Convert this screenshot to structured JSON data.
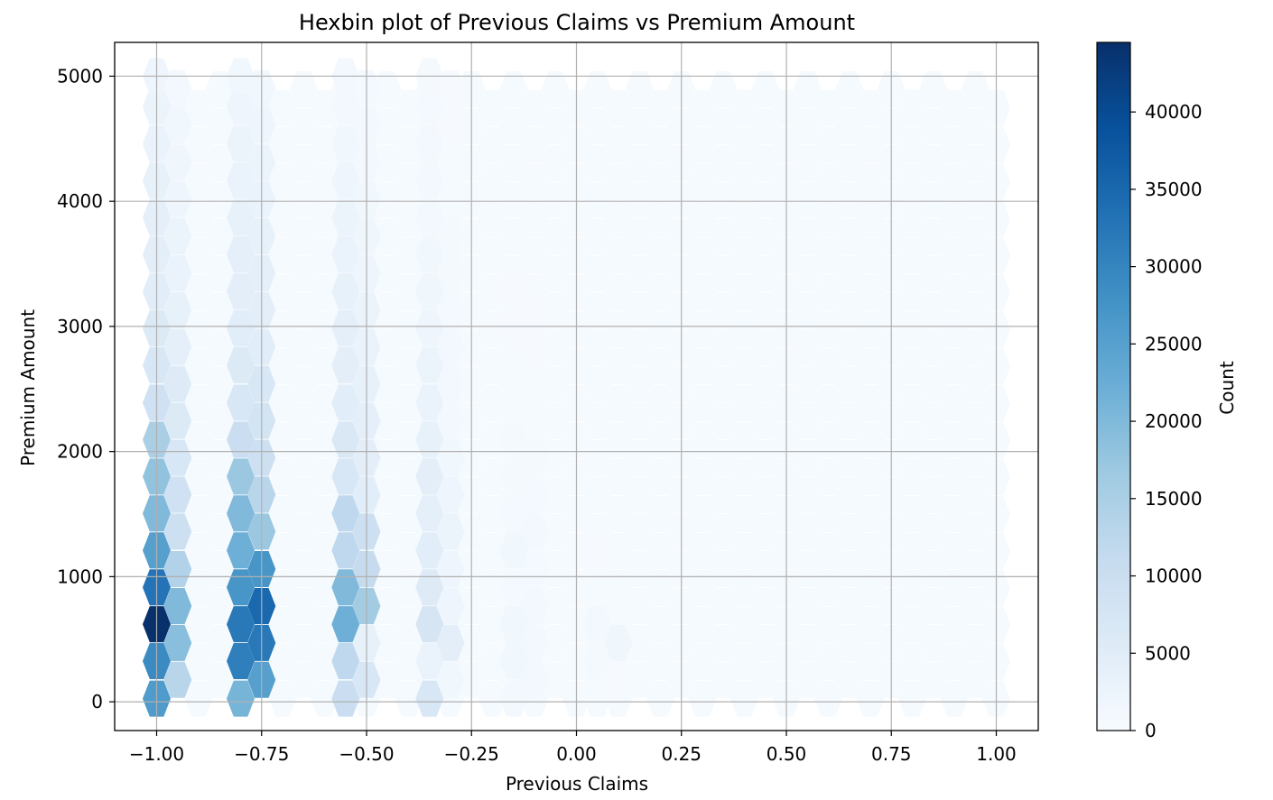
{
  "chart_data": {
    "type": "hexbin",
    "title": "Hexbin plot of Previous Claims vs Premium Amount",
    "xlabel": "Previous Claims",
    "ylabel": "Premium Amount",
    "xlim": [
      -1.1,
      1.1
    ],
    "ylim": [
      -230,
      5270
    ],
    "xticks": [
      -1.0,
      -0.75,
      -0.5,
      -0.25,
      0.0,
      0.25,
      0.5,
      0.75,
      1.0
    ],
    "xtick_labels": [
      "−1.00",
      "−0.75",
      "−0.50",
      "−0.25",
      "0.00",
      "0.25",
      "0.50",
      "0.75",
      "1.00"
    ],
    "yticks": [
      0,
      1000,
      2000,
      3000,
      4000,
      5000
    ],
    "ytick_labels": [
      "0",
      "1000",
      "2000",
      "3000",
      "4000",
      "5000"
    ],
    "grid": true,
    "colormap": "Blues",
    "colorbar": {
      "label": "Count",
      "min": 0,
      "max": 44500,
      "ticks": [
        0,
        5000,
        10000,
        15000,
        20000,
        25000,
        30000,
        35000,
        40000
      ],
      "tick_labels": [
        "0",
        "5000",
        "10000",
        "15000",
        "20000",
        "25000",
        "30000",
        "35000",
        "40000"
      ]
    },
    "x_columns": [
      -1.0,
      -0.95,
      -0.8,
      -0.75,
      -0.55,
      -0.5,
      -0.35,
      -0.3,
      -0.15,
      -0.1,
      0.05,
      0.1
    ],
    "y_centers": [
      [
        25,
        325,
        620,
        915,
        1210,
        1505,
        1800,
        2095,
        2390,
        2690,
        2985,
        3280,
        3575,
        3870,
        4165,
        4460,
        4760,
        5000
      ],
      [
        175,
        470,
        765,
        1060,
        1360,
        1655,
        1950,
        2245,
        2540,
        2835,
        3130,
        3425,
        3720,
        4015,
        4310,
        4610,
        4905
      ],
      [
        25,
        325,
        620,
        915,
        1210,
        1505,
        1800,
        2095,
        2390,
        2690,
        2985,
        3280,
        3575,
        3870,
        4165,
        4460,
        4760,
        5000
      ],
      [
        175,
        470,
        765,
        1060,
        1360,
        1655,
        1950,
        2245,
        2540,
        2835,
        3130,
        3425,
        3720,
        4015,
        4310,
        4610,
        4905
      ],
      [
        25,
        325,
        620,
        915,
        1210,
        1505,
        1800,
        2095,
        2390,
        2690,
        2985,
        3280,
        3575,
        3870,
        4165,
        4460,
        4760,
        5000
      ],
      [
        175,
        470,
        765,
        1060,
        1360,
        1655,
        1950,
        2245,
        2540,
        2835,
        3130,
        3425,
        3720,
        4015,
        4310,
        4610,
        4905
      ],
      [
        25,
        325,
        620,
        915,
        1210,
        1505,
        1800,
        2095,
        2390,
        2690,
        2985,
        3280,
        3575,
        3870,
        4165,
        4460,
        4760,
        5000
      ],
      [
        175,
        470,
        765,
        1060,
        1360,
        1655,
        1950,
        2245,
        2540,
        2835,
        3130,
        3425,
        3720,
        4015,
        4310,
        4610,
        4905
      ],
      [
        25,
        325,
        620,
        915,
        1210,
        1505,
        1800,
        2095,
        2390,
        2690,
        2985,
        3280
      ],
      [
        175,
        470,
        765,
        1060,
        1360,
        1655,
        1950,
        2245,
        2540,
        2835,
        3130
      ],
      [
        25,
        325,
        620,
        915,
        1210
      ],
      [
        175,
        470,
        765
      ]
    ],
    "counts": [
      [
        26000,
        29000,
        44500,
        33000,
        25000,
        20000,
        18000,
        15000,
        9000,
        7000,
        6000,
        5000,
        4500,
        4000,
        3500,
        3000,
        2500,
        2000
      ],
      [
        13000,
        19000,
        20000,
        14000,
        9500,
        9000,
        7000,
        6000,
        5500,
        4000,
        3500,
        3000,
        2500,
        2000,
        1800,
        1500,
        1200
      ],
      [
        21000,
        31000,
        32000,
        27000,
        22000,
        20000,
        17000,
        10000,
        7000,
        6000,
        5000,
        4500,
        4000,
        3500,
        3000,
        2500,
        2000,
        1500
      ],
      [
        25000,
        32000,
        35000,
        27000,
        17000,
        13000,
        9500,
        8000,
        7000,
        5000,
        4500,
        4000,
        3500,
        3000,
        2500,
        2000,
        1500
      ],
      [
        10000,
        12000,
        22000,
        20000,
        12000,
        12000,
        7000,
        6500,
        5000,
        4500,
        4000,
        3500,
        3000,
        2500,
        2000,
        1500,
        1200,
        1000
      ],
      [
        7000,
        3500,
        16000,
        11000,
        9500,
        5000,
        4500,
        4000,
        3500,
        3000,
        2500,
        2000,
        1800,
        1500,
        1200,
        1000,
        800
      ],
      [
        7000,
        3000,
        7500,
        5500,
        5000,
        4000,
        4500,
        3500,
        3000,
        2500,
        2000,
        1800,
        1500,
        1200,
        1000,
        900,
        800,
        700
      ],
      [
        1500,
        4500,
        2000,
        2000,
        2500,
        2000,
        1500,
        1200,
        1000,
        900,
        800,
        700,
        600,
        500,
        400,
        300,
        200
      ],
      [
        1000,
        1500,
        1500,
        800,
        1500,
        800,
        700,
        600,
        500,
        400,
        300,
        200
      ],
      [
        1200,
        1200,
        1200,
        800,
        1200,
        800,
        600,
        500,
        400,
        300,
        200
      ],
      [
        400,
        600,
        1200,
        400,
        300
      ],
      [
        300,
        1800,
        400
      ]
    ],
    "background_count": 400
  }
}
